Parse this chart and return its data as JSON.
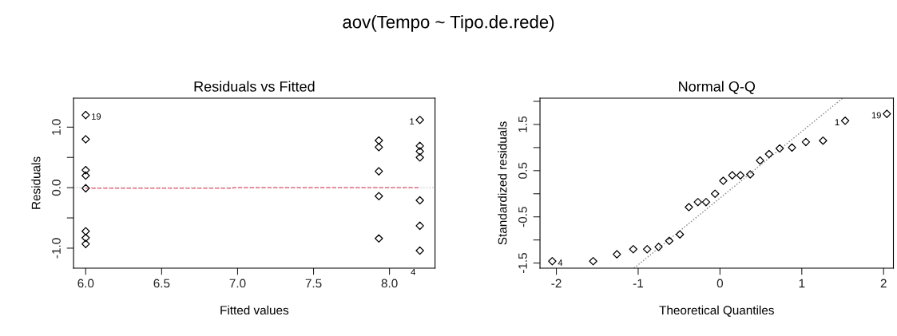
{
  "chart_data": [
    {
      "type": "scatter",
      "title": "Residuals vs Fitted",
      "xlabel": "Fitted values",
      "ylabel": "Residuals",
      "annotations": [
        "aov(Tempo ~ Tipo.de.rede)",
        {
          "text": "19",
          "x": 6.0,
          "y": 1.2
        },
        {
          "text": "1",
          "x": 8.2,
          "y": 1.12
        },
        {
          "text": "4",
          "x": 8.2,
          "y": -1.04
        }
      ],
      "series": [
        {
          "color": "#000000",
          "marker": "diamond",
          "x": [
            6.0,
            6.0,
            6.0,
            6.0,
            6.0,
            6.0,
            6.0,
            6.0,
            7.93,
            7.93,
            7.93,
            7.93,
            7.93,
            8.2,
            8.2,
            8.2,
            8.2,
            8.2,
            8.2,
            8.2
          ],
          "values": [
            1.2,
            0.8,
            0.29,
            0.2,
            -0.01,
            -0.72,
            -0.83,
            -0.93,
            0.78,
            0.67,
            0.27,
            -0.14,
            -0.84,
            1.12,
            0.69,
            0.6,
            0.5,
            -0.21,
            -0.63,
            -1.04
          ]
        },
        {
          "type": "line",
          "color": "#df536b",
          "line_style": "dashed",
          "marker": "none",
          "x": [
            6.0,
            6.97,
            6.97,
            8.2
          ],
          "values": [
            -0.01,
            -0.01,
            0.0,
            0.0
          ]
        }
      ],
      "ref_lines": [
        {
          "axis": "y",
          "value": 0,
          "color": "#bebebe",
          "line_style": "dotted"
        }
      ],
      "xlim": [
        5.92,
        8.3
      ],
      "ylim": [
        -1.33,
        1.48
      ],
      "xticks": [
        {
          "value": 6.0,
          "label": "6.0"
        },
        6.5,
        {
          "value": 7.0,
          "label": "7.0"
        },
        7.5,
        {
          "value": 8.0,
          "label": "8.0"
        }
      ],
      "yticks": [
        {
          "value": -1.0,
          "label": "-1.0"
        },
        {
          "value": -0.5,
          "label": null
        },
        {
          "value": 0.0,
          "label": "0.0"
        },
        {
          "value": 0.5,
          "label": null
        },
        {
          "value": 1.0,
          "label": "1.0"
        }
      ],
      "grid": false
    },
    {
      "type": "scatter",
      "title": "Normal Q-Q",
      "xlabel": "Theoretical Quantiles",
      "ylabel": "Standardized residuals",
      "annotations": [
        {
          "text": "4",
          "x": -2.05,
          "y": -1.46
        },
        {
          "text": "1",
          "x": 1.53,
          "y": 1.58
        },
        {
          "text": "19",
          "x": 2.04,
          "y": 1.73
        }
      ],
      "series": [
        {
          "color": "#000000",
          "marker": "diamond",
          "x": [
            -2.05,
            -1.55,
            -1.26,
            -1.06,
            -0.89,
            -0.75,
            -0.62,
            -0.49,
            -0.38,
            -0.27,
            -0.17,
            -0.06,
            0.04,
            0.15,
            0.25,
            0.37,
            0.49,
            0.6,
            0.73,
            0.88,
            1.05,
            1.26,
            1.53,
            2.04
          ],
          "values": [
            -1.46,
            -1.46,
            -1.31,
            -1.2,
            -1.2,
            -1.15,
            -1.02,
            -0.88,
            -0.29,
            -0.18,
            -0.18,
            0.0,
            0.28,
            0.4,
            0.4,
            0.42,
            0.72,
            0.86,
            0.98,
            1.0,
            1.12,
            1.15,
            1.58,
            1.73
          ]
        },
        {
          "type": "line",
          "color": "#808080",
          "line_style": "dotted",
          "marker": "none",
          "x": [
            -1.05,
            1.5
          ],
          "values": [
            -1.61,
            2.07
          ]
        }
      ],
      "xlim": [
        -2.2,
        2.12
      ],
      "ylim": [
        -1.61,
        2.07
      ],
      "xticks": [
        -2,
        -1,
        0,
        1,
        2
      ],
      "yticks": [
        {
          "value": -1.5,
          "label": "-1.5"
        },
        {
          "value": -1.0,
          "label": null
        },
        {
          "value": -0.5,
          "label": "-0.5"
        },
        {
          "value": 0.0,
          "label": null
        },
        {
          "value": 0.5,
          "label": "0.5"
        },
        {
          "value": 1.0,
          "label": null
        },
        {
          "value": 1.5,
          "label": "1.5"
        },
        {
          "value": 2.0,
          "label": null
        }
      ],
      "grid": false
    }
  ]
}
